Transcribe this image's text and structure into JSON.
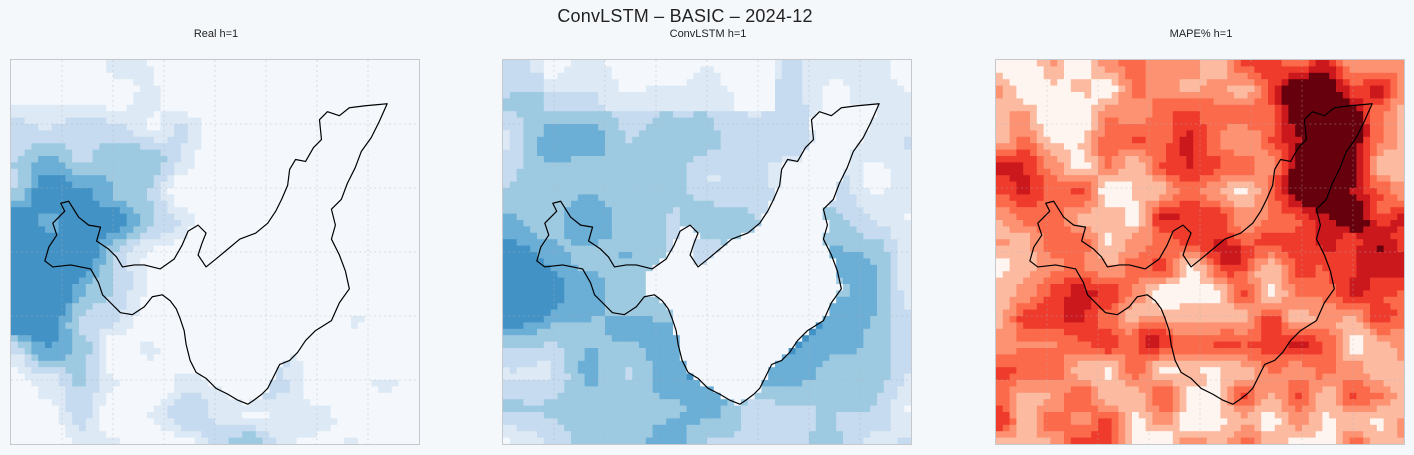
{
  "figure": {
    "suptitle": "ConvLSTM – BASIC – 2024-12"
  },
  "chart_data": [
    {
      "type": "heatmap",
      "title": "Real h=1",
      "colormap": "Blues",
      "grid": true,
      "boundary_outline": true
    },
    {
      "type": "heatmap",
      "title": "ConvLSTM h=1",
      "colormap": "Blues",
      "grid": true,
      "boundary_outline": true
    },
    {
      "type": "heatmap",
      "title": "MAPE% h=1",
      "colormap": "Reds",
      "grid": true,
      "boundary_outline": true
    }
  ],
  "colors": {
    "blues": [
      "#f4f8fc",
      "#dde9f5",
      "#c6dbef",
      "#9ecae1",
      "#6baed6",
      "#4292c6"
    ],
    "reds": [
      "#fff5f0",
      "#fcbba1",
      "#fc9272",
      "#fb6a4a",
      "#ef3b2c",
      "#cb181d",
      "#67000d"
    ],
    "outline": "#000000",
    "frame": "#c5c9ce",
    "background": "#f5f8fb"
  }
}
